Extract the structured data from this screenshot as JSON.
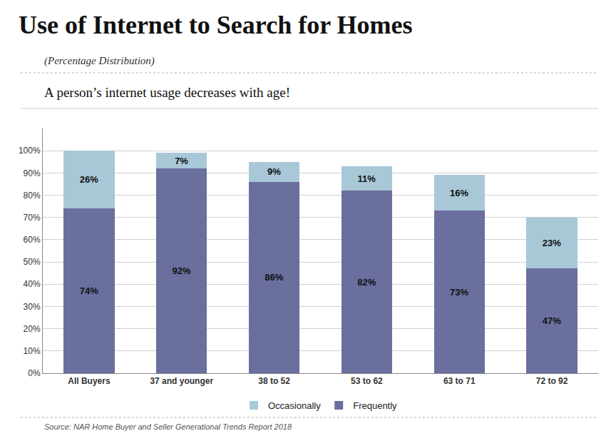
{
  "chart_data": {
    "type": "bar",
    "title": "Use of Internet to Search for Homes",
    "subtitle": "(Percentage Distribution)",
    "annotations": [
      "A person’s internet usage decreases with age!",
      "Source: NAR Home Buyer and Seller Generational Trends Report 2018"
    ],
    "categories": [
      "All Buyers",
      "37 and younger",
      "38 to 52",
      "53 to 62",
      "63 to 71",
      "72 to 92"
    ],
    "series": [
      {
        "name": "Frequently",
        "color": "#6a6f9e",
        "values": [
          74,
          92,
          86,
          82,
          73,
          47
        ],
        "value_labels": [
          "74%",
          "92%",
          "86%",
          "82%",
          "73%",
          "47%"
        ]
      },
      {
        "name": "Occasionally",
        "color": "#a8c8d8",
        "values": [
          26,
          7,
          9,
          11,
          16,
          23
        ],
        "value_labels": [
          "26%",
          "7%",
          "9%",
          "11%",
          "16%",
          "23%"
        ]
      }
    ],
    "ylim": [
      0,
      110
    ],
    "yticks": [
      {
        "value": 0,
        "label": "0%"
      },
      {
        "value": 10,
        "label": "10%"
      },
      {
        "value": 20,
        "label": "20%"
      },
      {
        "value": 30,
        "label": "30%"
      },
      {
        "value": 40,
        "label": "40%"
      },
      {
        "value": 50,
        "label": "50%"
      },
      {
        "value": 60,
        "label": "60%"
      },
      {
        "value": 70,
        "label": "70%"
      },
      {
        "value": 80,
        "label": "80%"
      },
      {
        "value": 90,
        "label": "90%"
      },
      {
        "value": 100,
        "label": "100%"
      }
    ],
    "grid": true,
    "stacked": true,
    "data_labels": true,
    "legend": "bottom"
  }
}
